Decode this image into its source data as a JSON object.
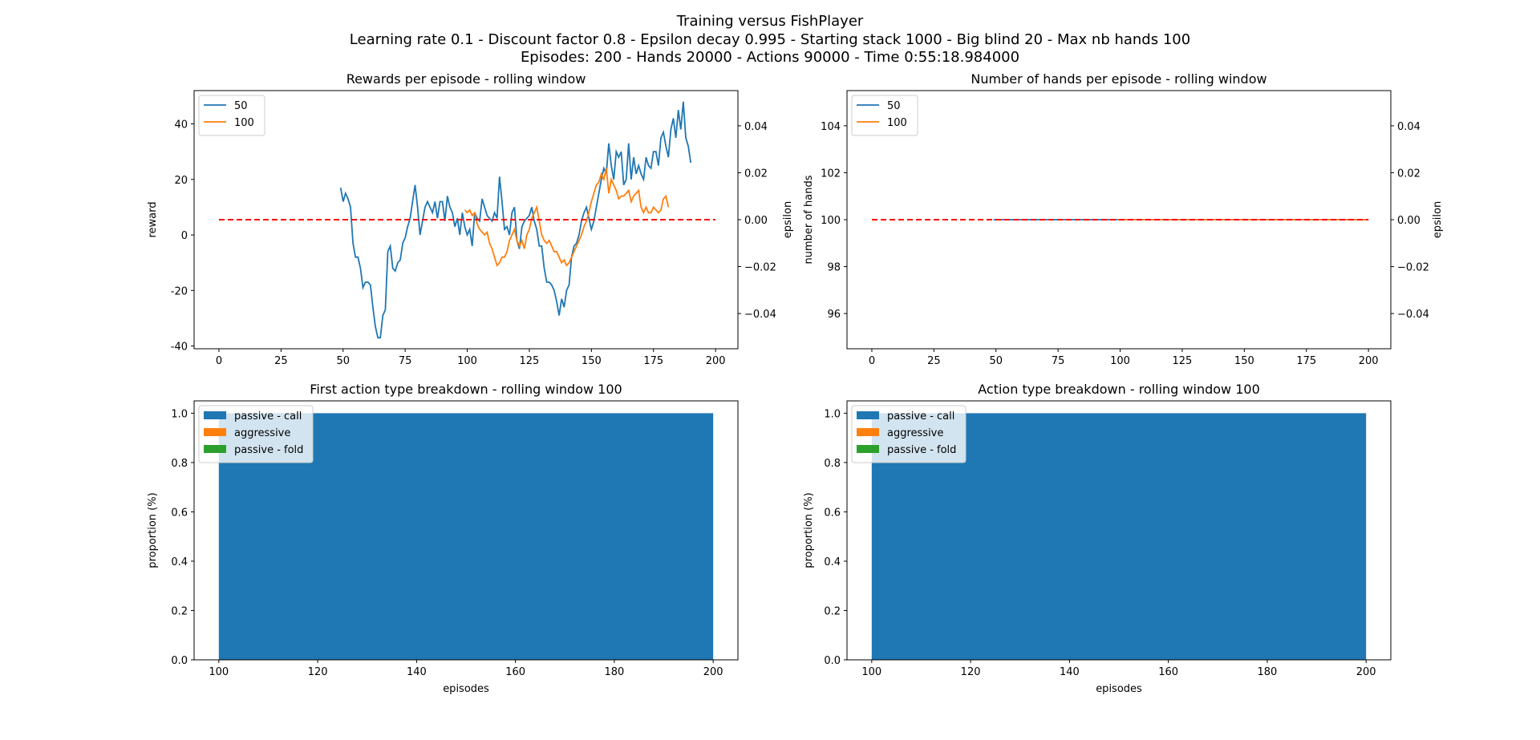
{
  "suptitle": [
    "Training versus FishPlayer",
    "Learning rate 0.1 - Discount factor 0.8 - Epsilon decay 0.995 - Starting stack 1000 - Big blind 20 - Max nb hands 100",
    "Episodes: 200 - Hands 20000 - Actions 90000 - Time 0:55:18.984000"
  ],
  "colors": {
    "blue": "#1f77b4",
    "orange": "#ff7f0e",
    "green": "#2ca02c",
    "red": "#ff0000"
  },
  "chart_data": [
    {
      "type": "line",
      "title": "Rewards per episode - rolling window",
      "xlabel": "",
      "ylabel": "reward",
      "y2label": "epsilon",
      "xlim": [
        -10,
        209
      ],
      "ylim": [
        -41,
        52
      ],
      "y2lim": [
        -0.055,
        0.055
      ],
      "xticks": [
        0,
        25,
        50,
        75,
        100,
        125,
        150,
        175,
        200
      ],
      "yticks": [
        -40,
        -20,
        0,
        20,
        40
      ],
      "y2ticks": [
        -0.04,
        -0.02,
        0.0,
        0.02,
        0.04
      ],
      "y2tick_labels": [
        "−0.04",
        "−0.02",
        "0.00",
        "0.02",
        "0.04"
      ],
      "legend": {
        "placement": "top-left"
      },
      "series": [
        {
          "name": "50",
          "color": "blue",
          "x_start": 49,
          "y": [
            17,
            12,
            15,
            13,
            10,
            -3,
            -8,
            -8,
            -12,
            -19,
            -17,
            -17,
            -18,
            -26,
            -33,
            -37,
            -37,
            -29,
            -27,
            -6,
            -4,
            -12,
            -13,
            -10,
            -9,
            -3,
            -1,
            3,
            6,
            12,
            18,
            10,
            0,
            5,
            10,
            12,
            10,
            8,
            12,
            6,
            12,
            12,
            5,
            14,
            10,
            8,
            3,
            6,
            0,
            8,
            3,
            0,
            2,
            -4,
            8,
            6,
            5,
            13,
            10,
            7,
            6,
            5,
            8,
            6,
            21,
            12,
            2,
            3,
            0,
            8,
            10,
            -2,
            -5,
            3,
            5,
            6,
            7,
            10,
            5,
            2,
            -4,
            -4,
            -12,
            -17,
            -17,
            -18,
            -20,
            -24,
            -29,
            -23,
            -26,
            -20,
            -18,
            -8,
            -4,
            -3,
            0,
            5,
            8,
            10,
            6,
            2,
            5,
            10,
            15,
            20,
            24,
            22,
            33,
            25,
            20,
            30,
            28,
            30,
            18,
            20,
            33,
            20,
            28,
            22,
            25,
            22,
            20,
            28,
            25,
            24,
            30,
            30,
            25,
            35,
            37,
            32,
            28,
            38,
            42,
            35,
            45,
            38,
            48,
            35,
            32,
            26
          ],
          "style": "solid"
        },
        {
          "name": "100",
          "color": "orange",
          "x_start": 99,
          "y": [
            9,
            8,
            9,
            7,
            8,
            4,
            2,
            1,
            0,
            1,
            -3,
            -5,
            -8,
            -11,
            -10,
            -8,
            -8,
            -6,
            -2,
            0,
            2,
            -2,
            -4,
            -2,
            -5,
            0,
            2,
            6,
            8,
            10,
            5,
            0,
            -2,
            -3,
            -2,
            -4,
            -6,
            -6,
            -8,
            -10,
            -9,
            -11,
            -10,
            -8,
            -6,
            -4,
            -2,
            0,
            3,
            5,
            8,
            12,
            15,
            18,
            19,
            22,
            20,
            24,
            15,
            20,
            18,
            16,
            13,
            14,
            14,
            15,
            16,
            12,
            14,
            15,
            16,
            10,
            8,
            10,
            8,
            8,
            10,
            9,
            8,
            9,
            13,
            14,
            10
          ],
          "style": "solid"
        },
        {
          "name": "",
          "color": "red",
          "axis": "y2",
          "style": "dashed",
          "x": [
            0,
            200
          ],
          "y": [
            0.0,
            0.0
          ]
        }
      ]
    },
    {
      "type": "line",
      "title": "Number of hands per episode - rolling window",
      "xlabel": "",
      "ylabel": "number of hands",
      "y2label": "epsilon",
      "xlim": [
        -10,
        209
      ],
      "ylim": [
        94.5,
        105.5
      ],
      "y2lim": [
        -0.055,
        0.055
      ],
      "xticks": [
        0,
        25,
        50,
        75,
        100,
        125,
        150,
        175,
        200
      ],
      "yticks": [
        96,
        98,
        100,
        102,
        104
      ],
      "y2ticks": [
        -0.04,
        -0.02,
        0.0,
        0.02,
        0.04
      ],
      "y2tick_labels": [
        "−0.04",
        "−0.02",
        "0.00",
        "0.02",
        "0.04"
      ],
      "legend": {
        "placement": "top-left"
      },
      "series": [
        {
          "name": "50",
          "color": "blue",
          "x": [
            49,
            199
          ],
          "y": [
            100,
            100
          ],
          "style": "solid"
        },
        {
          "name": "100",
          "color": "orange",
          "x": [
            99,
            199
          ],
          "y": [
            100,
            100
          ],
          "style": "solid"
        },
        {
          "name": "",
          "color": "red",
          "axis": "y2",
          "style": "dashed",
          "x": [
            0,
            200
          ],
          "y": [
            0.0,
            0.0
          ]
        }
      ]
    },
    {
      "type": "area",
      "title": "First action type breakdown - rolling window 100",
      "xlabel": "episodes",
      "ylabel": "proportion (%)",
      "xlim": [
        95,
        205
      ],
      "ylim": [
        0,
        1.05
      ],
      "xticks": [
        100,
        120,
        140,
        160,
        180,
        200
      ],
      "yticks": [
        0.0,
        0.2,
        0.4,
        0.6,
        0.8,
        1.0
      ],
      "ytick_labels": [
        "0.0",
        "0.2",
        "0.4",
        "0.6",
        "0.8",
        "1.0"
      ],
      "legend": {
        "placement": "top-left"
      },
      "x_range": [
        100,
        200
      ],
      "series": [
        {
          "name": "passive - call",
          "color": "blue",
          "value": 1.0
        },
        {
          "name": "aggressive",
          "color": "orange",
          "value": 0.0
        },
        {
          "name": "passive - fold",
          "color": "green",
          "value": 0.0
        }
      ]
    },
    {
      "type": "area",
      "title": "Action type breakdown - rolling window 100",
      "xlabel": "episodes",
      "ylabel": "proportion (%)",
      "xlim": [
        95,
        205
      ],
      "ylim": [
        0,
        1.05
      ],
      "xticks": [
        100,
        120,
        140,
        160,
        180,
        200
      ],
      "yticks": [
        0.0,
        0.2,
        0.4,
        0.6,
        0.8,
        1.0
      ],
      "ytick_labels": [
        "0.0",
        "0.2",
        "0.4",
        "0.6",
        "0.8",
        "1.0"
      ],
      "legend": {
        "placement": "top-left"
      },
      "x_range": [
        100,
        200
      ],
      "series": [
        {
          "name": "passive - call",
          "color": "blue",
          "value": 1.0
        },
        {
          "name": "aggressive",
          "color": "orange",
          "value": 0.0
        },
        {
          "name": "passive - fold",
          "color": "green",
          "value": 0.0
        }
      ]
    }
  ]
}
